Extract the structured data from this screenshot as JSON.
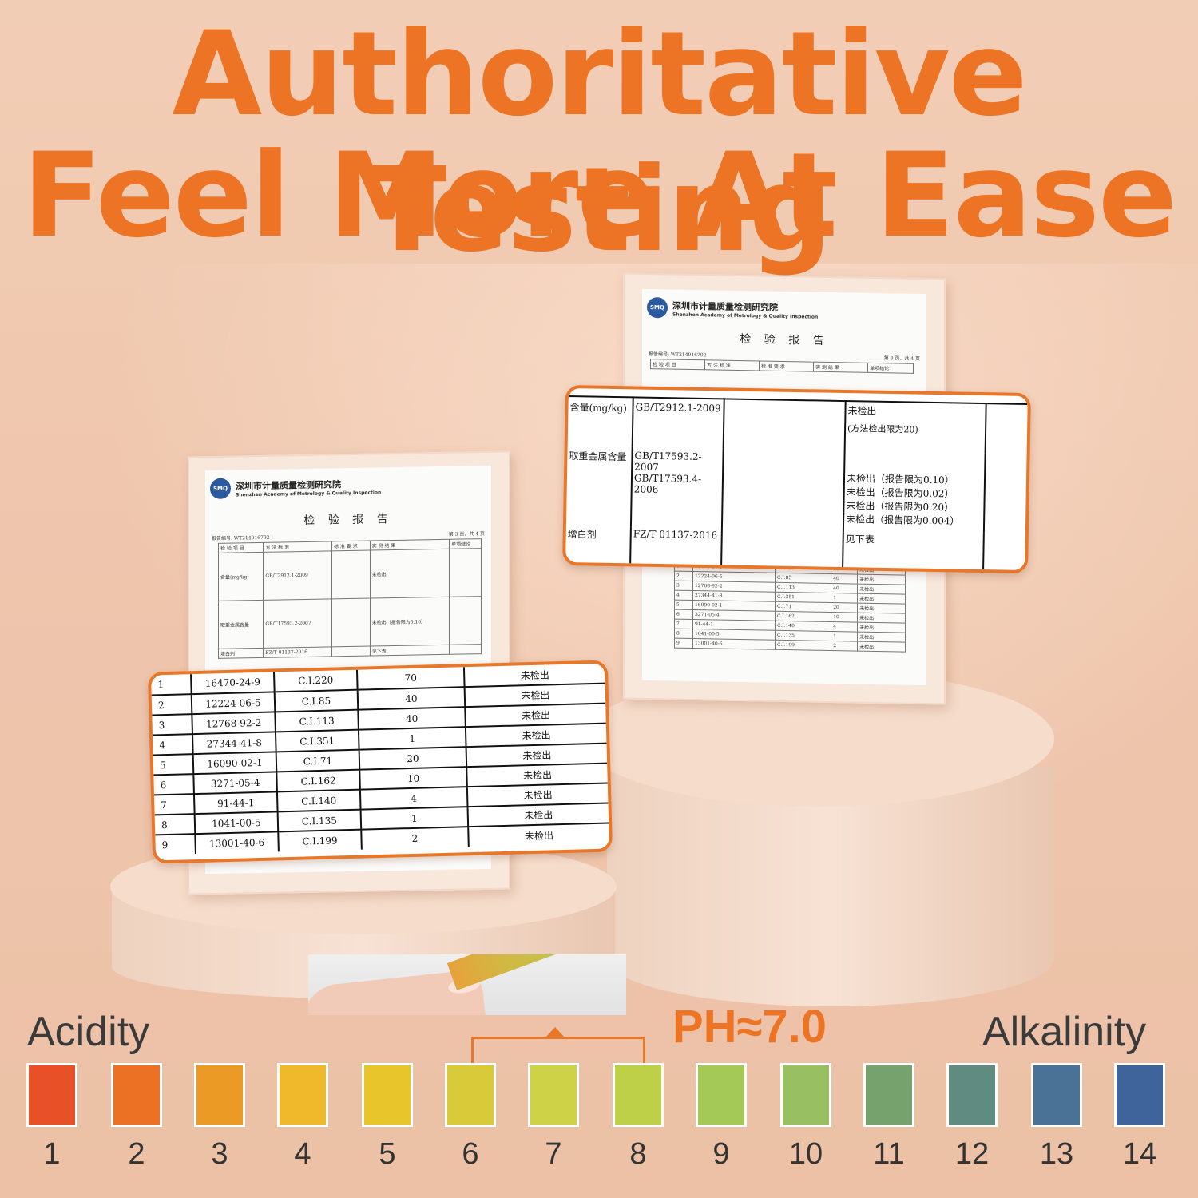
{
  "headline": {
    "line1": "Authoritative Testing",
    "line2": "Feel More At Ease"
  },
  "report": {
    "institute_cn": "深圳市计量质量检测研究院",
    "institute_en": "Shenzhen Academy of Metrology & Quality Inspection",
    "logo_text": "SMQ",
    "title": "检 验 报 告",
    "report_no": "报告编号: WT214016792",
    "page": "第 3 页，共 4 页",
    "headers": [
      "检 验 项 目",
      "方 法 标 准",
      "标 准 要 求",
      "实 测 结 果",
      "单项结论"
    ]
  },
  "callout_right": {
    "rows": [
      {
        "item": "含量(mg/kg)",
        "method": "GB/T2912.1-2009",
        "result": "未检出",
        "note": "(方法检出限为20)"
      },
      {
        "item": "取重金属含量",
        "method": "GB/T17593.2-2007",
        "method2": "GB/T17593.4-2006",
        "results": [
          "未检出（报告限为0.10）",
          "未检出（报告限为0.02）",
          "未检出（报告限为0.20）",
          "未检出（报告限为0.004）"
        ]
      },
      {
        "item": "增白剂",
        "method": "FZ/T 01137-2016",
        "result": "见下表"
      }
    ]
  },
  "callout_left": {
    "rows": [
      {
        "no": "1",
        "cas": "16470-24-9",
        "ci": "C.I.220",
        "limit": "70",
        "result": "未检出"
      },
      {
        "no": "2",
        "cas": "12224-06-5",
        "ci": "C.I.85",
        "limit": "40",
        "result": "未检出"
      },
      {
        "no": "3",
        "cas": "12768-92-2",
        "ci": "C.I.113",
        "limit": "40",
        "result": "未检出"
      },
      {
        "no": "4",
        "cas": "27344-41-8",
        "ci": "C.I.351",
        "limit": "1",
        "result": "未检出"
      },
      {
        "no": "5",
        "cas": "16090-02-1",
        "ci": "C.I.71",
        "limit": "20",
        "result": "未检出"
      },
      {
        "no": "6",
        "cas": "3271-05-4",
        "ci": "C.I.162",
        "limit": "10",
        "result": "未检出"
      },
      {
        "no": "7",
        "cas": "91-44-1",
        "ci": "C.I.140",
        "limit": "4",
        "result": "未检出"
      },
      {
        "no": "8",
        "cas": "1041-00-5",
        "ci": "C.I.135",
        "limit": "1",
        "result": "未检出"
      },
      {
        "no": "9",
        "cas": "13001-40-6",
        "ci": "C.I.199",
        "limit": "2",
        "result": "未检出"
      }
    ]
  },
  "ph_scale": {
    "acidity_label": "Acidity",
    "alkalinity_label": "Alkalinity",
    "reading": "PH≈7.0",
    "swatches": [
      {
        "value": "1",
        "color": "#e85028"
      },
      {
        "value": "2",
        "color": "#ed7124"
      },
      {
        "value": "3",
        "color": "#eb9a26"
      },
      {
        "value": "4",
        "color": "#f0b92c"
      },
      {
        "value": "5",
        "color": "#e9c52c"
      },
      {
        "value": "6",
        "color": "#d9ca3a"
      },
      {
        "value": "7",
        "color": "#cdd247"
      },
      {
        "value": "8",
        "color": "#bed048"
      },
      {
        "value": "9",
        "color": "#a5c956"
      },
      {
        "value": "10",
        "color": "#98c063"
      },
      {
        "value": "11",
        "color": "#76a36d"
      },
      {
        "value": "12",
        "color": "#5f8b80"
      },
      {
        "value": "13",
        "color": "#4a7196"
      },
      {
        "value": "14",
        "color": "#3f649c"
      }
    ]
  }
}
